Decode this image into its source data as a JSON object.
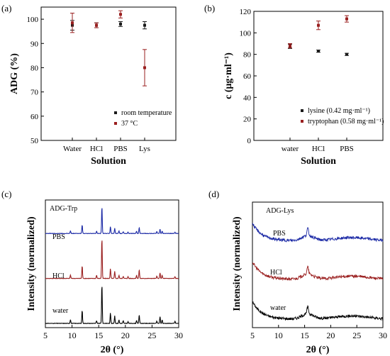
{
  "panels": [
    {
      "label": "(a)",
      "chart_data": {
        "type": "scatter",
        "categories": [
          "Water",
          "HCl",
          "PBS",
          "Lys"
        ],
        "xlabel": "Solution",
        "ylabel": "ADG (%)",
        "ylim": [
          50,
          105
        ],
        "yticks": [
          50,
          60,
          70,
          80,
          90,
          100
        ],
        "legend_position": "bottom-right",
        "series": [
          {
            "name": "room temperature",
            "color": "#1a1a1a",
            "values": [
              97.5,
              97.5,
              98.0,
              97.5
            ],
            "errors": [
              2.0,
              1.0,
              1.0,
              1.5
            ]
          },
          {
            "name": "37 °C",
            "color": "#9a1f1f",
            "values": [
              98.5,
              97.5,
              102.0,
              80.0
            ],
            "errors": [
              4.0,
              1.0,
              1.5,
              7.5
            ]
          }
        ]
      }
    },
    {
      "label": "(b)",
      "chart_data": {
        "type": "scatter",
        "categories": [
          "water",
          "HCl",
          "PBS"
        ],
        "xlabel": "Solution",
        "ylabel": "c (μg·ml⁻¹)",
        "ylim": [
          0,
          120
        ],
        "yticks": [
          0,
          20,
          40,
          60,
          80,
          100,
          120
        ],
        "legend_position": "bottom-right",
        "series": [
          {
            "name": "lysine (0.42 mg·ml⁻¹)",
            "color": "#1a1a1a",
            "values": [
              87.5,
              83.0,
              80.0
            ],
            "errors": [
              2.0,
              1.0,
              1.0
            ]
          },
          {
            "name": "tryptophan (0.58 mg·ml⁻¹)",
            "color": "#9a1f1f",
            "values": [
              88.0,
              107.0,
              113.0
            ],
            "errors": [
              2.0,
              4.0,
              3.0
            ]
          }
        ]
      }
    },
    {
      "label": "(c)",
      "chart_data": {
        "type": "line",
        "inner_label": "ADG-Trp",
        "xlabel": "2θ (°)",
        "ylabel": "Intensity (normalized)",
        "xlim": [
          5,
          30
        ],
        "xticks": [
          5,
          10,
          15,
          20,
          25,
          30
        ],
        "series": [
          {
            "name": "water",
            "color": "#000000",
            "offset": 0.0,
            "peaks": [
              [
                9.7,
                0.09
              ],
              [
                11.9,
                0.3
              ],
              [
                14.6,
                0.06
              ],
              [
                15.6,
                0.9
              ],
              [
                17.2,
                0.24
              ],
              [
                18.0,
                0.17
              ],
              [
                18.8,
                0.08
              ],
              [
                19.6,
                0.06
              ],
              [
                20.5,
                0.04
              ],
              [
                22.1,
                0.07
              ],
              [
                22.6,
                0.2
              ],
              [
                25.9,
                0.05
              ],
              [
                26.5,
                0.15
              ],
              [
                26.9,
                0.08
              ],
              [
                29.3,
                0.05
              ]
            ]
          },
          {
            "name": "HCl",
            "color": "#9a1f1f",
            "offset": 0.37,
            "peaks": [
              [
                9.7,
                0.08
              ],
              [
                11.9,
                0.29
              ],
              [
                14.6,
                0.07
              ],
              [
                15.6,
                0.93
              ],
              [
                17.2,
                0.22
              ],
              [
                18.0,
                0.16
              ],
              [
                18.8,
                0.07
              ],
              [
                19.6,
                0.05
              ],
              [
                20.5,
                0.04
              ],
              [
                22.1,
                0.07
              ],
              [
                22.6,
                0.2
              ],
              [
                25.9,
                0.05
              ],
              [
                26.5,
                0.13
              ],
              [
                26.9,
                0.07
              ],
              [
                29.3,
                0.04
              ]
            ]
          },
          {
            "name": "PBS",
            "color": "#1c2aa6",
            "offset": 0.74,
            "peaks": [
              [
                9.7,
                0.06
              ],
              [
                11.9,
                0.2
              ],
              [
                14.6,
                0.05
              ],
              [
                15.6,
                0.62
              ],
              [
                17.2,
                0.16
              ],
              [
                18.0,
                0.12
              ],
              [
                18.8,
                0.06
              ],
              [
                19.6,
                0.04
              ],
              [
                20.5,
                0.03
              ],
              [
                22.1,
                0.05
              ],
              [
                22.6,
                0.14
              ],
              [
                25.9,
                0.04
              ],
              [
                26.5,
                0.1
              ],
              [
                26.9,
                0.05
              ],
              [
                29.3,
                0.03
              ]
            ]
          }
        ]
      }
    },
    {
      "label": "(d)",
      "chart_data": {
        "type": "line",
        "inner_label": "ADG-Lys",
        "xlabel": "2θ (°)",
        "ylabel": "Intensity (normalized)",
        "xlim": [
          5,
          30
        ],
        "xticks": [
          5,
          10,
          15,
          20,
          25,
          30
        ],
        "series": [
          {
            "name": "water",
            "color": "#000000",
            "offset": 0.0
          },
          {
            "name": "HCl",
            "color": "#9a1f1f",
            "offset": 0.34
          },
          {
            "name": "PBS",
            "color": "#1c2aa6",
            "offset": 0.67
          }
        ]
      }
    }
  ]
}
